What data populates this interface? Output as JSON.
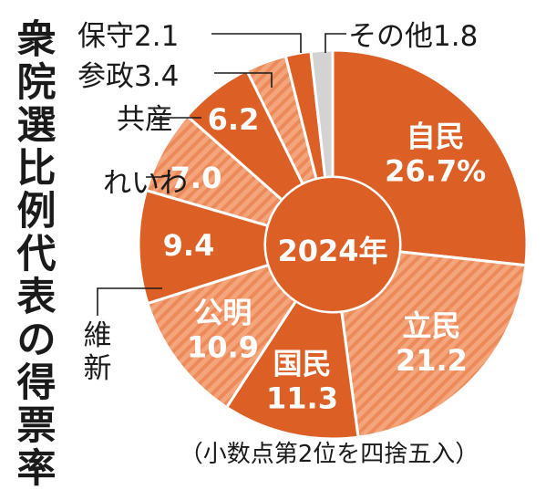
{
  "chart_data": {
    "type": "pie",
    "title": "衆院選比例代表の得票率",
    "center_label": "2024年",
    "note": "（小数点第2位を四捨五入）",
    "colors": {
      "main": "#dc5f26",
      "hatch_light": "#f4a57c",
      "other": "#d3d3d3",
      "text": "#1a1a1a"
    },
    "slices": [
      {
        "label": "自民",
        "value_text": "26.7%",
        "value": 26.7,
        "pattern": "solid",
        "label_pos": "inside"
      },
      {
        "label": "立民",
        "value_text": "21.2",
        "value": 21.2,
        "pattern": "hatched",
        "label_pos": "inside"
      },
      {
        "label": "国民",
        "value_text": "11.3",
        "value": 11.3,
        "pattern": "solid",
        "label_pos": "inside"
      },
      {
        "label": "公明",
        "value_text": "10.9",
        "value": 10.9,
        "pattern": "hatched",
        "label_pos": "inside"
      },
      {
        "label": "維新",
        "value_text": "9.4",
        "value": 9.4,
        "pattern": "solid",
        "label_pos": "split"
      },
      {
        "label": "れいわ",
        "value_text": "7.0",
        "value": 7.0,
        "pattern": "hatched",
        "label_pos": "split"
      },
      {
        "label": "共産",
        "value_text": "6.2",
        "value": 6.2,
        "pattern": "solid",
        "label_pos": "split"
      },
      {
        "label": "参政",
        "value_text": "3.4",
        "value": 3.4,
        "pattern": "hatched",
        "label_pos": "outside"
      },
      {
        "label": "保守",
        "value_text": "2.1",
        "value": 2.1,
        "pattern": "solid",
        "label_pos": "outside"
      },
      {
        "label": "その他",
        "value_text": "1.8",
        "value": 1.8,
        "pattern": "other",
        "label_pos": "outside"
      }
    ]
  }
}
